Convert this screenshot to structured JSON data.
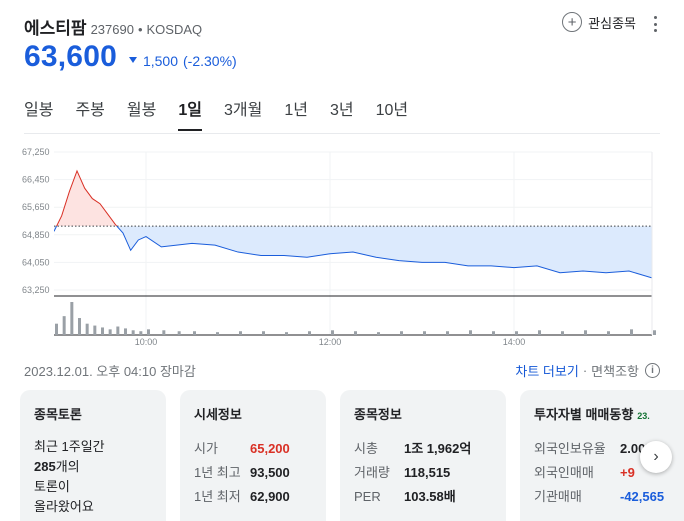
{
  "stock": {
    "name": "에스티팜",
    "code": "237690",
    "market": "KOSDAQ",
    "price": "63,600",
    "change": "1,500",
    "change_pct": "(-2.30%)",
    "watch_label": "관심종목",
    "colors": {
      "down": "#1a5ddb",
      "up": "#d93025"
    }
  },
  "tabs": [
    {
      "label": "일봉"
    },
    {
      "label": "주봉"
    },
    {
      "label": "월봉"
    },
    {
      "label": "1일"
    },
    {
      "label": "3개월"
    },
    {
      "label": "1년"
    },
    {
      "label": "3년"
    },
    {
      "label": "10년"
    }
  ],
  "active_tab": "1일",
  "chart_data": {
    "type": "line",
    "y_ticks": [
      "67,250",
      "66,450",
      "65,650",
      "64,850",
      "64,050",
      "63,250"
    ],
    "x_ticks": [
      "10:00",
      "12:00",
      "14:00"
    ],
    "previous_close": 65100,
    "ylim": [
      63250,
      67250
    ],
    "x": [
      "09:00",
      "09:05",
      "09:10",
      "09:15",
      "09:20",
      "09:25",
      "09:30",
      "09:35",
      "09:40",
      "09:45",
      "09:50",
      "09:55",
      "10:00",
      "10:10",
      "10:20",
      "10:30",
      "10:45",
      "11:00",
      "11:15",
      "11:30",
      "11:45",
      "12:00",
      "12:15",
      "12:30",
      "12:45",
      "13:00",
      "13:15",
      "13:30",
      "13:45",
      "14:00",
      "14:15",
      "14:30",
      "14:45",
      "15:00",
      "15:15",
      "15:30"
    ],
    "values": [
      64950,
      65400,
      66100,
      66700,
      66200,
      65900,
      65750,
      65450,
      65150,
      64900,
      64400,
      64700,
      64800,
      64500,
      64550,
      64600,
      64550,
      64350,
      64250,
      64250,
      64200,
      64300,
      64350,
      64200,
      64100,
      64050,
      64050,
      63950,
      63950,
      63900,
      63950,
      63750,
      63800,
      63750,
      63800,
      63600
    ],
    "volume": [
      12,
      20,
      35,
      18,
      12,
      10,
      8,
      6,
      9,
      7,
      5,
      4,
      6,
      5,
      4,
      4,
      3,
      4,
      4,
      3,
      4,
      5,
      4,
      3,
      4,
      4,
      4,
      5,
      4,
      4,
      5,
      4,
      5,
      4,
      6,
      5
    ]
  },
  "footer": {
    "timestamp": "2023.12.01. 오후 04:10 장마감",
    "more_chart": "차트 더보기",
    "disclaimer": "면책조항"
  },
  "cards": {
    "board": {
      "title": "종목토론",
      "line1": "최근 1주일간",
      "count": "285",
      "count_suffix": "개의",
      "line3": "토론이",
      "line4": "올라왔어요"
    },
    "market": {
      "title": "시세정보",
      "rows": [
        {
          "k": "시가",
          "v": "65,200"
        },
        {
          "k": "1년 최고",
          "v": "93,500"
        },
        {
          "k": "1년 최저",
          "v": "62,900"
        }
      ]
    },
    "info": {
      "title": "종목정보",
      "rows": [
        {
          "k": "시총",
          "v": "1조 1,962억"
        },
        {
          "k": "거래량",
          "v": "118,515"
        },
        {
          "k": "PER",
          "v": "103.58배"
        }
      ]
    },
    "investor": {
      "title": "투자자별 매매동향",
      "badge": "23.",
      "rows": [
        {
          "k": "외국인보유율",
          "v": "2.00%"
        },
        {
          "k": "외국인매매",
          "v": "+9"
        },
        {
          "k": "기관매매",
          "v": "-42,565"
        }
      ]
    }
  }
}
